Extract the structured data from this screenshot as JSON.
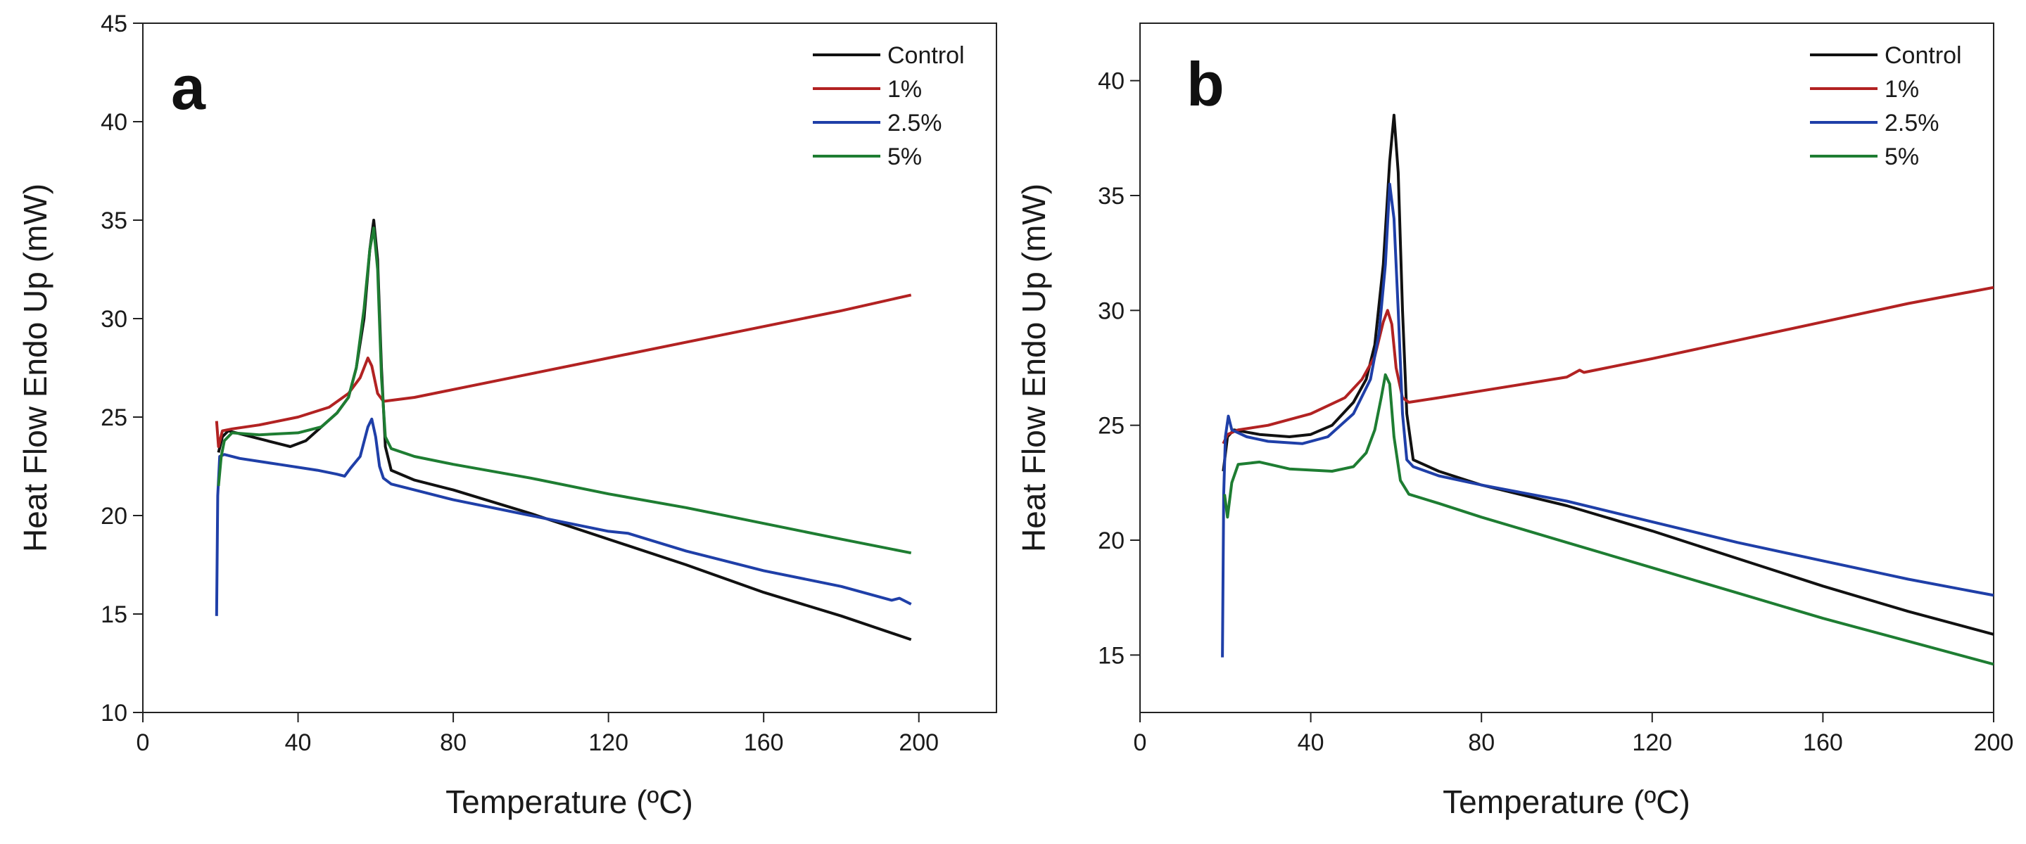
{
  "chart_data": [
    {
      "type": "line",
      "panel_label": "a",
      "title": "",
      "xlabel": "Temperature (ºC)",
      "ylabel": "Heat Flow Endo Up (mW)",
      "xlim": [
        0,
        220
      ],
      "ylim": [
        10,
        45
      ],
      "xticks": [
        0,
        40,
        80,
        120,
        160,
        200
      ],
      "yticks": [
        10,
        15,
        20,
        25,
        30,
        35,
        40,
        45
      ],
      "xtick_labels": [
        "0",
        "40",
        "80",
        "120",
        "160",
        "200"
      ],
      "ytick_labels": [
        "10",
        "15",
        "20",
        "25",
        "30",
        "35",
        "40",
        "45"
      ],
      "legend_position": "top-right",
      "series": [
        {
          "name": "Control",
          "color": "#111111",
          "points": [
            [
              19.5,
              23.2
            ],
            [
              20.5,
              24
            ],
            [
              22,
              24.3
            ],
            [
              26,
              24.1
            ],
            [
              32,
              23.8
            ],
            [
              38,
              23.5
            ],
            [
              42,
              23.8
            ],
            [
              46,
              24.5
            ],
            [
              50,
              25.2
            ],
            [
              53,
              26
            ],
            [
              55,
              27.5
            ],
            [
              57,
              30
            ],
            [
              58.5,
              33.5
            ],
            [
              59.5,
              35
            ],
            [
              60.5,
              33
            ],
            [
              61.5,
              27.5
            ],
            [
              62.5,
              23.5
            ],
            [
              64,
              22.3
            ],
            [
              70,
              21.8
            ],
            [
              80,
              21.3
            ],
            [
              100,
              20.1
            ],
            [
              120,
              18.8
            ],
            [
              140,
              17.5
            ],
            [
              160,
              16.1
            ],
            [
              180,
              14.9
            ],
            [
              198,
              13.7
            ]
          ]
        },
        {
          "name": "1%",
          "color": "#b22222",
          "points": [
            [
              19,
              24.8
            ],
            [
              19.5,
              23.5
            ],
            [
              20.5,
              24.3
            ],
            [
              23,
              24.4
            ],
            [
              30,
              24.6
            ],
            [
              40,
              25
            ],
            [
              48,
              25.5
            ],
            [
              53,
              26.2
            ],
            [
              56,
              27
            ],
            [
              58,
              28
            ],
            [
              59,
              27.6
            ],
            [
              60.5,
              26.2
            ],
            [
              62,
              25.8
            ],
            [
              70,
              26
            ],
            [
              80,
              26.4
            ],
            [
              100,
              27.2
            ],
            [
              120,
              28
            ],
            [
              140,
              28.8
            ],
            [
              160,
              29.6
            ],
            [
              180,
              30.4
            ],
            [
              198,
              31.2
            ]
          ]
        },
        {
          "name": "2.5%",
          "color": "#1f3fa8",
          "points": [
            [
              19,
              14.9
            ],
            [
              19.3,
              21
            ],
            [
              19.8,
              23
            ],
            [
              21,
              23.1
            ],
            [
              25,
              22.9
            ],
            [
              35,
              22.6
            ],
            [
              45,
              22.3
            ],
            [
              50,
              22.1
            ],
            [
              52,
              22
            ],
            [
              53.5,
              22.4
            ],
            [
              56,
              23
            ],
            [
              58,
              24.5
            ],
            [
              59,
              24.9
            ],
            [
              60,
              24
            ],
            [
              61,
              22.5
            ],
            [
              62,
              21.9
            ],
            [
              64,
              21.6
            ],
            [
              70,
              21.3
            ],
            [
              80,
              20.8
            ],
            [
              100,
              20
            ],
            [
              120,
              19.2
            ],
            [
              125,
              19.1
            ],
            [
              140,
              18.2
            ],
            [
              160,
              17.2
            ],
            [
              180,
              16.4
            ],
            [
              193,
              15.7
            ],
            [
              195,
              15.8
            ],
            [
              198,
              15.5
            ]
          ]
        },
        {
          "name": "5%",
          "color": "#1e7d32",
          "points": [
            [
              19.5,
              21.5
            ],
            [
              20.2,
              23
            ],
            [
              21,
              23.8
            ],
            [
              23,
              24.2
            ],
            [
              30,
              24.1
            ],
            [
              40,
              24.2
            ],
            [
              46,
              24.5
            ],
            [
              50,
              25.2
            ],
            [
              53,
              26
            ],
            [
              55,
              27.5
            ],
            [
              57,
              30.5
            ],
            [
              58.5,
              33.5
            ],
            [
              59.5,
              34.6
            ],
            [
              60.5,
              32.5
            ],
            [
              61.5,
              27
            ],
            [
              62.5,
              24
            ],
            [
              64,
              23.4
            ],
            [
              70,
              23
            ],
            [
              80,
              22.6
            ],
            [
              100,
              21.9
            ],
            [
              120,
              21.1
            ],
            [
              140,
              20.4
            ],
            [
              160,
              19.6
            ],
            [
              180,
              18.8
            ],
            [
              198,
              18.1
            ]
          ]
        }
      ]
    },
    {
      "type": "line",
      "panel_label": "b",
      "title": "",
      "xlabel": "Temperature (ºC)",
      "ylabel": "Heat Flow Endo Up (mW)",
      "xlim": [
        0,
        200
      ],
      "ylim": [
        12.5,
        42.5
      ],
      "xticks": [
        0,
        40,
        80,
        120,
        160,
        200
      ],
      "yticks": [
        15,
        20,
        25,
        30,
        35,
        40
      ],
      "xtick_labels": [
        "0",
        "40",
        "80",
        "120",
        "160",
        "200"
      ],
      "ytick_labels": [
        "15",
        "20",
        "25",
        "30",
        "35",
        "40"
      ],
      "legend_position": "top-right",
      "series": [
        {
          "name": "Control",
          "color": "#111111",
          "points": [
            [
              19.5,
              23
            ],
            [
              20.5,
              24.5
            ],
            [
              22,
              24.8
            ],
            [
              28,
              24.6
            ],
            [
              35,
              24.5
            ],
            [
              40,
              24.6
            ],
            [
              45,
              25
            ],
            [
              50,
              26
            ],
            [
              53,
              27
            ],
            [
              55,
              28.5
            ],
            [
              57,
              32
            ],
            [
              58.5,
              36.5
            ],
            [
              59.5,
              38.5
            ],
            [
              60.5,
              36
            ],
            [
              61.5,
              30
            ],
            [
              62.5,
              25.5
            ],
            [
              64,
              23.5
            ],
            [
              70,
              23
            ],
            [
              80,
              22.4
            ],
            [
              100,
              21.5
            ],
            [
              120,
              20.4
            ],
            [
              140,
              19.2
            ],
            [
              160,
              18
            ],
            [
              180,
              16.9
            ],
            [
              200,
              15.9
            ]
          ]
        },
        {
          "name": "1%",
          "color": "#b22222",
          "points": [
            [
              19.5,
              24.2
            ],
            [
              20.5,
              24.6
            ],
            [
              23,
              24.8
            ],
            [
              30,
              25
            ],
            [
              40,
              25.5
            ],
            [
              48,
              26.2
            ],
            [
              52,
              27
            ],
            [
              55,
              28
            ],
            [
              57,
              29.5
            ],
            [
              58,
              30
            ],
            [
              59,
              29.4
            ],
            [
              60,
              27.5
            ],
            [
              61.5,
              26.2
            ],
            [
              63,
              26
            ],
            [
              70,
              26.2
            ],
            [
              80,
              26.5
            ],
            [
              100,
              27.1
            ],
            [
              103,
              27.4
            ],
            [
              104,
              27.3
            ],
            [
              120,
              27.9
            ],
            [
              140,
              28.7
            ],
            [
              160,
              29.5
            ],
            [
              180,
              30.3
            ],
            [
              200,
              31
            ]
          ]
        },
        {
          "name": "2.5%",
          "color": "#1f3fa8",
          "points": [
            [
              19.3,
              14.9
            ],
            [
              19.6,
              22
            ],
            [
              20,
              24.5
            ],
            [
              20.7,
              25.4
            ],
            [
              21.5,
              24.8
            ],
            [
              25,
              24.5
            ],
            [
              30,
              24.3
            ],
            [
              38,
              24.2
            ],
            [
              44,
              24.5
            ],
            [
              50,
              25.5
            ],
            [
              54,
              27
            ],
            [
              56,
              29
            ],
            [
              57.5,
              32
            ],
            [
              58.5,
              35.5
            ],
            [
              59.5,
              34
            ],
            [
              60.5,
              30
            ],
            [
              61.5,
              25.5
            ],
            [
              62.5,
              23.5
            ],
            [
              64,
              23.2
            ],
            [
              70,
              22.8
            ],
            [
              80,
              22.4
            ],
            [
              100,
              21.7
            ],
            [
              120,
              20.8
            ],
            [
              140,
              19.9
            ],
            [
              160,
              19.1
            ],
            [
              180,
              18.3
            ],
            [
              200,
              17.6
            ]
          ]
        },
        {
          "name": "5%",
          "color": "#1e7d32",
          "points": [
            [
              19.8,
              22
            ],
            [
              20.5,
              21
            ],
            [
              21.5,
              22.5
            ],
            [
              23,
              23.3
            ],
            [
              28,
              23.4
            ],
            [
              35,
              23.1
            ],
            [
              45,
              23
            ],
            [
              50,
              23.2
            ],
            [
              53,
              23.8
            ],
            [
              55,
              24.8
            ],
            [
              56.5,
              26.2
            ],
            [
              57.5,
              27.2
            ],
            [
              58.5,
              26.8
            ],
            [
              59.5,
              24.5
            ],
            [
              61,
              22.6
            ],
            [
              63,
              22
            ],
            [
              70,
              21.6
            ],
            [
              80,
              21
            ],
            [
              100,
              19.9
            ],
            [
              120,
              18.8
            ],
            [
              140,
              17.7
            ],
            [
              160,
              16.6
            ],
            [
              180,
              15.6
            ],
            [
              200,
              14.6
            ]
          ]
        }
      ]
    }
  ]
}
